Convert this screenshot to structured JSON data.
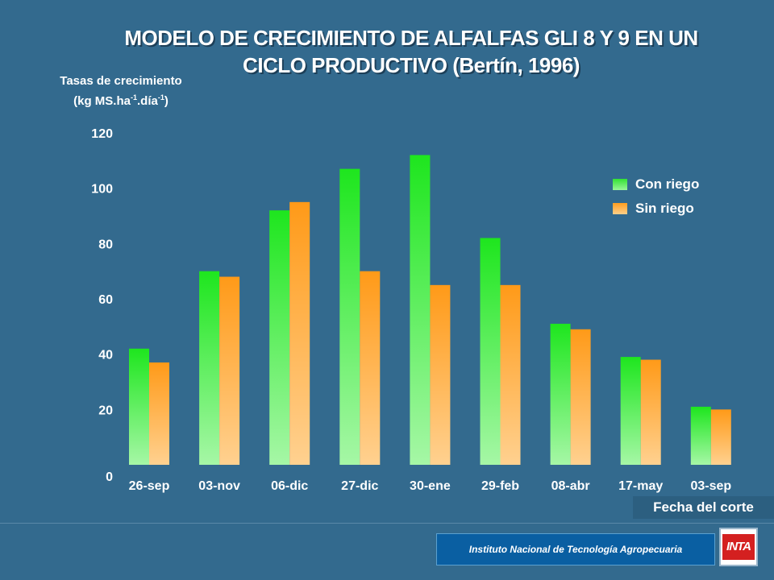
{
  "chart_data": {
    "type": "bar",
    "title": "MODELO DE CRECIMIENTO DE ALFALFAS GLI 8 Y 9 EN UN CICLO PRODUCTIVO (Bertín, 1996)",
    "title_line1": "MODELO DE CRECIMIENTO DE ALFALFAS GLI 8 Y 9 EN UN",
    "title_line2": "CICLO PRODUCTIVO (Bertín, 1996)",
    "ylabel_line1": "Tasas de crecimiento",
    "ylabel_line2_a": "(kg MS.ha",
    "ylabel_line2_sup1": "-1",
    "ylabel_line2_b": ".día",
    "ylabel_line2_sup2": "-1",
    "ylabel_line2_c": ")",
    "xlabel": "Fecha del corte",
    "ylim": [
      0,
      120
    ],
    "yticks": [
      0,
      20,
      40,
      60,
      80,
      100,
      120
    ],
    "categories": [
      "26-sep",
      "03-nov",
      "06-dic",
      "27-dic",
      "30-ene",
      "29-feb",
      "08-abr",
      "17-may",
      "03-sep"
    ],
    "series": [
      {
        "name": "Con riego",
        "color": "#33e133",
        "values": [
          42,
          70,
          92,
          107,
          112,
          82,
          51,
          39,
          21
        ]
      },
      {
        "name": "Sin riego",
        "color": "#ff9e20",
        "values": [
          37,
          68,
          95,
          70,
          65,
          65,
          49,
          38,
          20
        ]
      }
    ],
    "legend_position": "right"
  },
  "footer": {
    "institution": "Instituto Nacional de Tecnología Agropecuaria",
    "logo_text": "INTA"
  }
}
